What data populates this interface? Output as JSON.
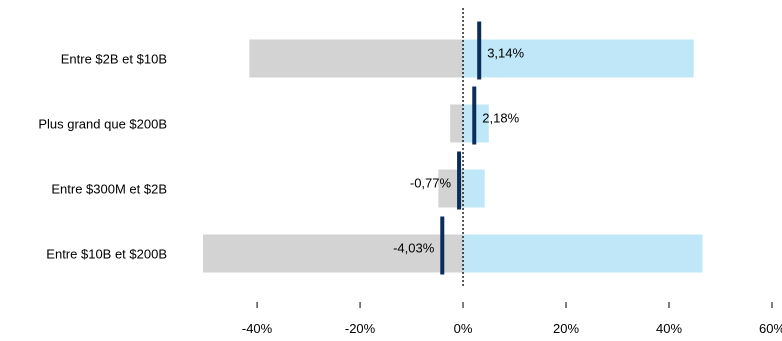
{
  "chart_data": {
    "type": "bar",
    "orientation": "horizontal",
    "categories": [
      "Entre $2B et $10B",
      "Plus grand que $200B",
      "Entre $300M et $2B",
      "Entre $10B et $200B"
    ],
    "series": [
      {
        "role": "range-min",
        "values": [
          -41.5,
          -2.5,
          -4.8,
          -50.5
        ],
        "color": "#d3d3d3"
      },
      {
        "role": "range-max",
        "values": [
          44.8,
          5.0,
          4.2,
          46.5
        ],
        "color": "#bfe7f7"
      },
      {
        "role": "marker",
        "values": [
          3.14,
          2.18,
          -0.77,
          -4.03
        ],
        "color": "#0b2d5b"
      }
    ],
    "data_labels": [
      "3,14%",
      "2,18%",
      "-0,77%",
      "-4,03%"
    ],
    "x_ticks": [
      -40,
      -20,
      0,
      20,
      40,
      60
    ],
    "x_tick_labels": [
      "-40%",
      "-20%",
      "0%",
      "20%",
      "40%",
      "60%"
    ],
    "xlim": [
      -50.5,
      60
    ],
    "zero_line": "dotted",
    "grid": false,
    "title": "",
    "xlabel": "",
    "ylabel": ""
  }
}
